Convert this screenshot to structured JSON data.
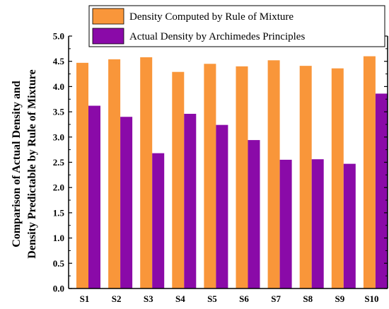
{
  "chart_data": {
    "type": "bar",
    "title": "",
    "xlabel": "",
    "ylabel_lines": [
      "Comparison of Actual Density and",
      "Density Predictable by Rule of Mixture"
    ],
    "categories": [
      "S1",
      "S2",
      "S3",
      "S4",
      "S5",
      "S6",
      "S7",
      "S8",
      "S9",
      "S10"
    ],
    "series": [
      {
        "name": "Density Computed by Rule of Mixture",
        "color": "#f9963a",
        "values": [
          4.47,
          4.54,
          4.58,
          4.29,
          4.45,
          4.4,
          4.52,
          4.41,
          4.36,
          4.6
        ]
      },
      {
        "name": "Actual Density by Archimedes Principles",
        "color": "#8a0aa8",
        "values": [
          3.62,
          3.4,
          2.68,
          3.46,
          3.24,
          2.94,
          2.55,
          2.56,
          2.47,
          3.86
        ]
      }
    ],
    "ylim": [
      0.0,
      5.0
    ],
    "yticks": [
      "0.0",
      "0.5",
      "1.0",
      "1.5",
      "2.0",
      "2.5",
      "3.0",
      "3.5",
      "4.0",
      "4.5",
      "5.0"
    ],
    "grid": false,
    "legend_position": "top"
  }
}
